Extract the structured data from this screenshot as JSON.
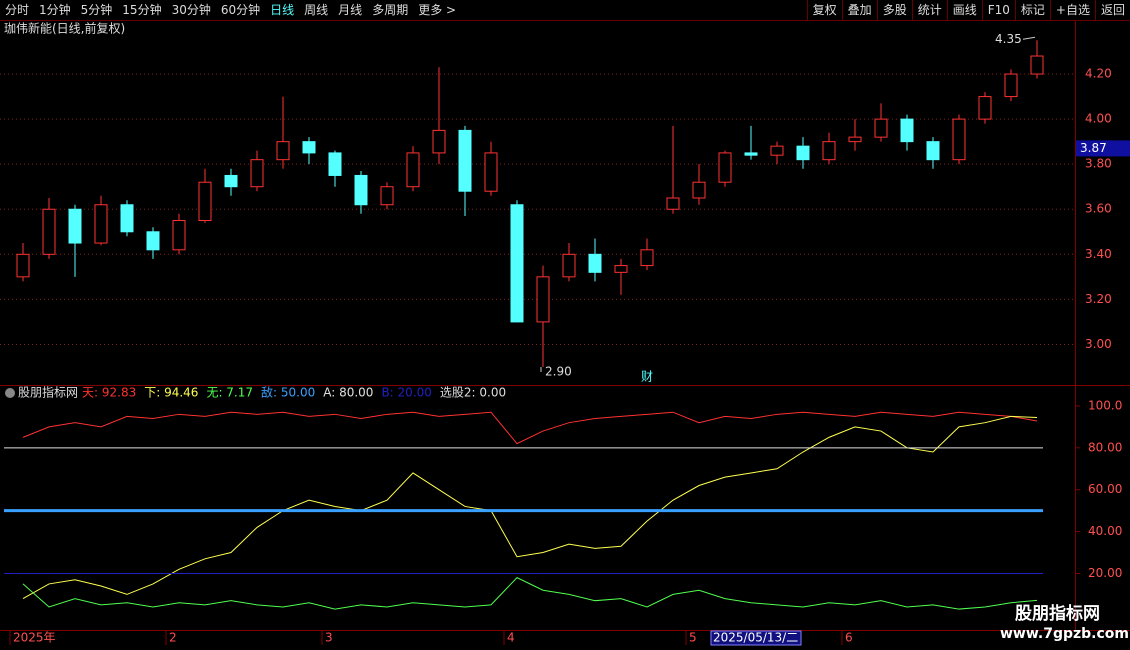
{
  "toolbar": {
    "left": [
      "分时",
      "1分钟",
      "5分钟",
      "15分钟",
      "30分钟",
      "60分钟",
      "日线",
      "周线",
      "月线",
      "多周期",
      "更多 >"
    ],
    "active": 6,
    "right": [
      "复权",
      "叠加",
      "多股",
      "统计",
      "画线",
      "F10",
      "标记",
      "+自选",
      "返回"
    ]
  },
  "watermark": {
    "title": "股朋指标网",
    "url": "www.7gpzb.com"
  },
  "chart_data": [
    {
      "type": "candlestick",
      "title": "珈伟新能(日线,前复权)",
      "categories": [
        "2025年",
        null,
        null,
        null,
        null,
        null,
        "2",
        null,
        null,
        null,
        null,
        null,
        "3",
        null,
        null,
        null,
        null,
        null,
        null,
        "4",
        null,
        null,
        null,
        null,
        null,
        null,
        "5",
        null,
        null,
        null,
        null,
        null,
        "6",
        null,
        null,
        null,
        null,
        null,
        null,
        null
      ],
      "open": [
        3.3,
        3.4,
        3.6,
        3.45,
        3.62,
        3.5,
        3.42,
        3.55,
        3.75,
        3.7,
        3.82,
        3.9,
        3.85,
        3.75,
        3.62,
        3.7,
        3.85,
        3.95,
        3.68,
        3.62,
        3.1,
        3.3,
        3.4,
        3.32,
        3.35,
        3.6,
        3.65,
        3.72,
        3.85,
        3.84,
        3.88,
        3.82,
        3.9,
        3.92,
        4.0,
        3.9,
        3.82,
        4.0,
        4.1,
        4.2
      ],
      "high": [
        3.45,
        3.65,
        3.62,
        3.66,
        3.64,
        3.52,
        3.58,
        3.78,
        3.78,
        3.86,
        4.1,
        3.92,
        3.86,
        3.77,
        3.72,
        3.88,
        4.23,
        3.97,
        3.9,
        3.64,
        3.35,
        3.45,
        3.47,
        3.38,
        3.47,
        3.97,
        3.8,
        3.86,
        3.97,
        3.9,
        3.92,
        3.94,
        4.0,
        4.07,
        4.02,
        3.92,
        4.02,
        4.12,
        4.22,
        4.35
      ],
      "low": [
        3.28,
        3.38,
        3.3,
        3.44,
        3.48,
        3.38,
        3.4,
        3.54,
        3.66,
        3.68,
        3.78,
        3.8,
        3.7,
        3.58,
        3.6,
        3.68,
        3.8,
        3.57,
        3.66,
        3.1,
        2.9,
        3.28,
        3.28,
        3.22,
        3.33,
        3.58,
        3.62,
        3.7,
        3.82,
        3.8,
        3.78,
        3.8,
        3.86,
        3.9,
        3.86,
        3.78,
        3.8,
        3.98,
        4.08,
        4.18
      ],
      "close": [
        3.4,
        3.6,
        3.45,
        3.62,
        3.5,
        3.42,
        3.55,
        3.72,
        3.7,
        3.82,
        3.9,
        3.85,
        3.75,
        3.62,
        3.7,
        3.85,
        3.95,
        3.68,
        3.85,
        3.1,
        3.3,
        3.4,
        3.32,
        3.35,
        3.42,
        3.65,
        3.72,
        3.85,
        3.84,
        3.88,
        3.82,
        3.9,
        3.92,
        4.0,
        3.9,
        3.82,
        4.0,
        4.1,
        4.2,
        4.28
      ],
      "up_color": "#ff3232",
      "down_color": "#54ffff",
      "ylim": [
        2.82,
        4.36
      ],
      "yticks": [
        {
          "value": 3.0,
          "label": "3.00"
        },
        {
          "value": 3.2,
          "label": "3.20"
        },
        {
          "value": 3.4,
          "label": "3.40"
        },
        {
          "value": 3.6,
          "label": "3.60"
        },
        {
          "value": 3.8,
          "label": "3.80"
        },
        {
          "value": 4.0,
          "label": "4.00"
        },
        {
          "value": 4.2,
          "label": "4.20"
        }
      ],
      "grid": true,
      "annotations": [
        {
          "text": "4.35",
          "value": 4.35,
          "index": 39
        },
        {
          "text": "2.90",
          "value": 2.9,
          "index": 20
        },
        {
          "text": "财",
          "index": 24
        }
      ],
      "current_price": {
        "value": 3.87,
        "label": "3.87"
      },
      "cursor_label": {
        "index": 28,
        "text": "2025/05/13/二"
      }
    },
    {
      "type": "line",
      "title": "股朋指标网",
      "series": [
        {
          "name": "天: 92.83",
          "color": "#ff3232",
          "values": [
            85,
            90,
            92,
            90,
            95,
            94,
            96,
            95,
            97,
            96,
            97,
            95,
            96,
            94,
            96,
            97,
            95,
            96,
            97,
            82,
            88,
            92,
            94,
            95,
            96,
            97,
            92,
            95,
            94,
            96,
            97,
            96,
            95,
            97,
            96,
            95,
            97,
            96,
            95,
            92.83
          ]
        },
        {
          "name": "下: 94.46",
          "color": "#ffff50",
          "values": [
            8,
            15,
            17,
            14,
            10,
            15,
            22,
            27,
            30,
            42,
            50,
            55,
            52,
            50,
            55,
            68,
            60,
            52,
            50,
            28,
            30,
            34,
            32,
            33,
            45,
            55,
            62,
            66,
            68,
            70,
            78,
            85,
            90,
            88,
            80,
            78,
            90,
            92,
            95,
            94.46
          ]
        },
        {
          "name": "无: 7.17",
          "color": "#50ff50",
          "values": [
            15,
            4,
            8,
            5,
            6,
            4,
            6,
            5,
            7,
            5,
            4,
            6,
            3,
            5,
            4,
            6,
            5,
            4,
            5,
            18,
            12,
            10,
            7,
            8,
            4,
            10,
            12,
            8,
            6,
            5,
            4,
            6,
            5,
            7,
            4,
            5,
            3,
            4,
            6,
            7.17
          ]
        }
      ],
      "reference_lines": [
        {
          "name": "敌: 50.00",
          "value": 50,
          "color": "#3aa0ff"
        },
        {
          "name": "A: 80.00",
          "value": 80,
          "color": "#e0e0e0"
        },
        {
          "name": "B: 20.00",
          "value": 20,
          "color": "#2020c0"
        }
      ],
      "extra_label": "选股2: 0.00",
      "ylim": [
        -7,
        110
      ],
      "yticks": [
        {
          "value": 20,
          "label": "20.00"
        },
        {
          "value": 40,
          "label": "40.00"
        },
        {
          "value": 60,
          "label": "60.00"
        },
        {
          "value": 80,
          "label": "80.00"
        },
        {
          "value": 100,
          "label": "100.0"
        }
      ]
    }
  ]
}
